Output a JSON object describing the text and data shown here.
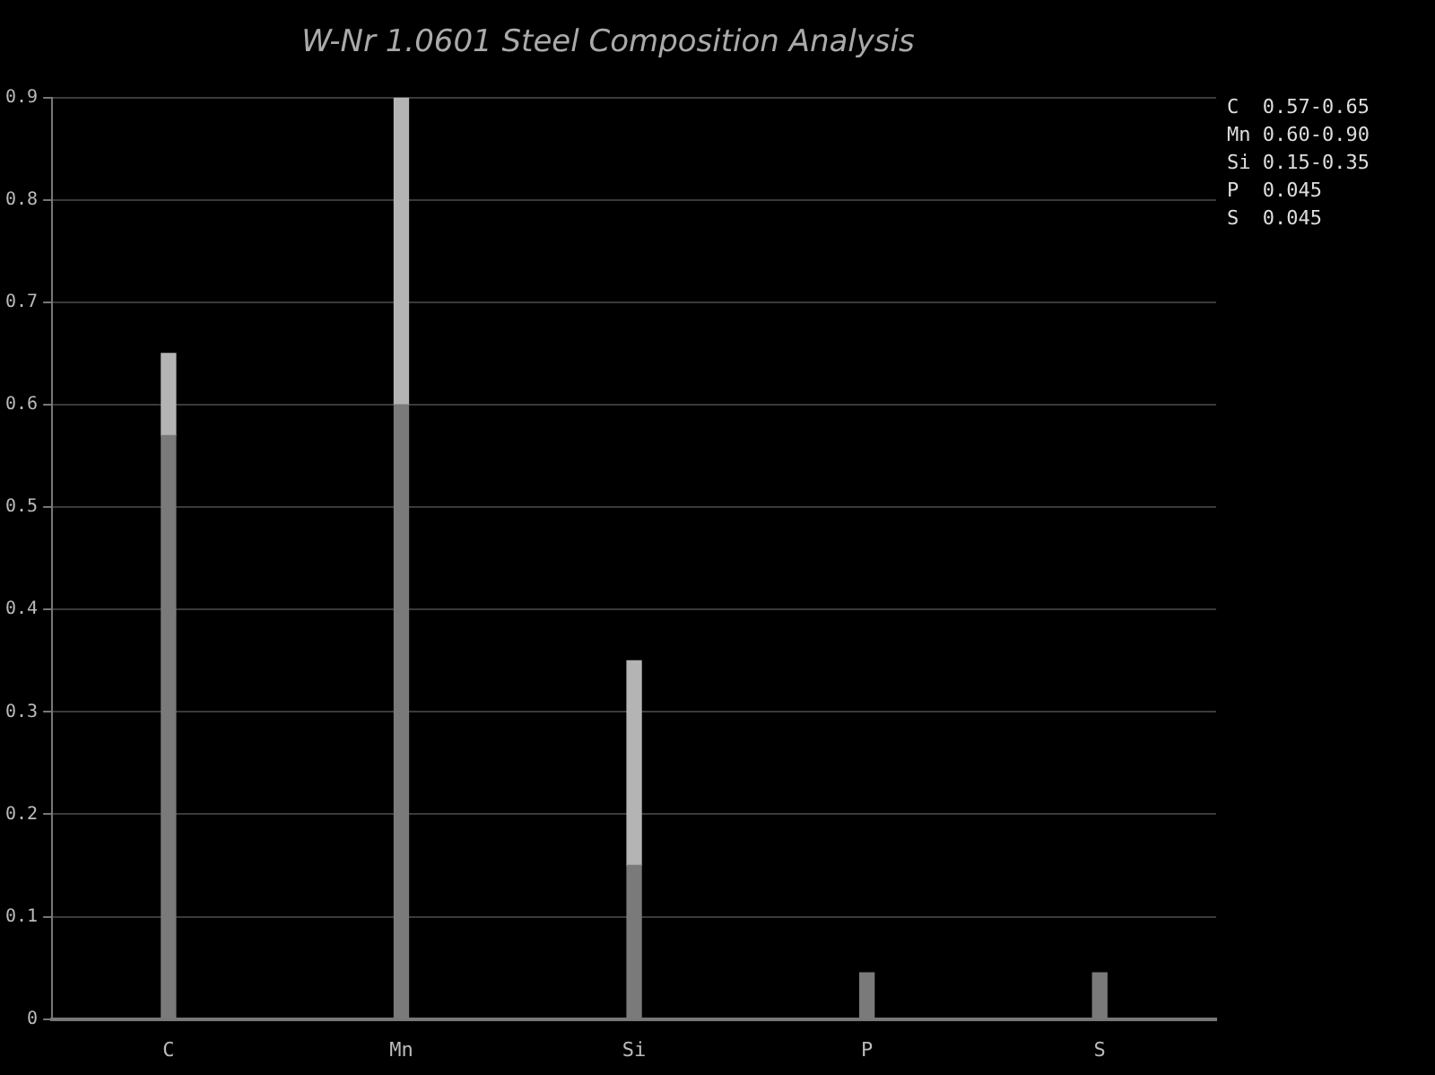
{
  "chart_data": {
    "type": "bar",
    "title": "W-Nr 1.0601 Steel Composition Analysis",
    "categories": [
      "C",
      "Mn",
      "Si",
      "P",
      "S"
    ],
    "stacked": true,
    "series": [
      {
        "color": "#7a7a7a",
        "values": [
          0.57,
          0.6,
          0.15,
          0.045,
          0.045
        ]
      },
      {
        "color": "#b4b4b4",
        "values": [
          0.08,
          0.3,
          0.2,
          null,
          null
        ]
      }
    ],
    "ylim": [
      0,
      0.9
    ],
    "yticks": [
      0,
      0.1,
      0.2,
      0.3,
      0.4,
      0.5,
      0.6,
      0.7,
      0.8,
      0.9
    ],
    "grid": "y",
    "legend": false,
    "annotations": [
      "C  0.57-0.65",
      "Mn 0.60-0.90",
      "Si 0.15-0.35",
      "P  0.045",
      "S  0.045"
    ]
  }
}
